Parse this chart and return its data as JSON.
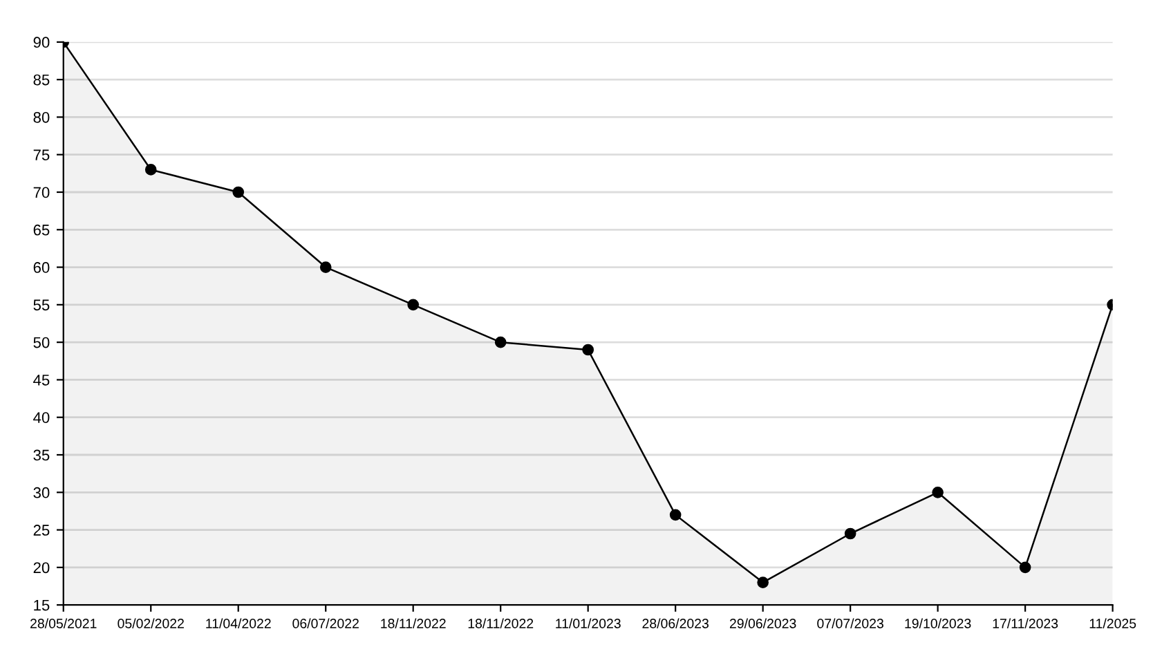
{
  "chart_data": {
    "type": "area",
    "categories": [
      "28/05/2021",
      "05/02/2022",
      "11/04/2022",
      "06/07/2022",
      "18/11/2022",
      "18/11/2022",
      "11/01/2023",
      "28/06/2023",
      "29/06/2023",
      "07/07/2023",
      "19/10/2023",
      "17/11/2023",
      "11/2025"
    ],
    "series": [
      {
        "color": "#000000",
        "values": [
          90,
          73,
          70,
          60,
          55,
          50,
          49,
          27,
          18,
          24.5,
          30,
          20,
          55
        ]
      }
    ],
    "ylim": [
      15,
      90
    ],
    "yticks": [
      15,
      20,
      25,
      30,
      35,
      40,
      45,
      50,
      55,
      60,
      65,
      70,
      75,
      80,
      85,
      90
    ],
    "grid": "y",
    "marker": "circle",
    "line_style": "solid",
    "legend": false
  }
}
